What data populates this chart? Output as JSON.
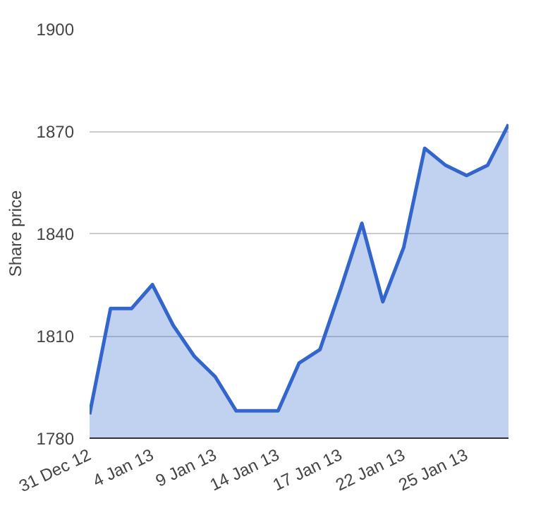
{
  "chart_data": {
    "type": "area",
    "ylabel": "Share price",
    "categories": [
      "31 Dec 12",
      null,
      null,
      "4 Jan 13",
      null,
      null,
      "9 Jan 13",
      null,
      null,
      "14 Jan 13",
      null,
      null,
      "17 Jan 13",
      null,
      null,
      "22 Jan 13",
      null,
      null,
      "25 Jan 13",
      null,
      null
    ],
    "series": [
      {
        "color": "#3366cc",
        "values": [
          1787,
          1818,
          1818,
          1825,
          1813,
          1804,
          1798,
          1788,
          1788,
          1788,
          1802,
          1806,
          1824,
          1843,
          1820,
          1836,
          1865,
          1860,
          1857,
          1860,
          1872
        ]
      }
    ],
    "ylim": [
      1780,
      1900
    ],
    "yticks": [
      1780,
      1810,
      1840,
      1870,
      1900
    ],
    "grid": "y"
  }
}
